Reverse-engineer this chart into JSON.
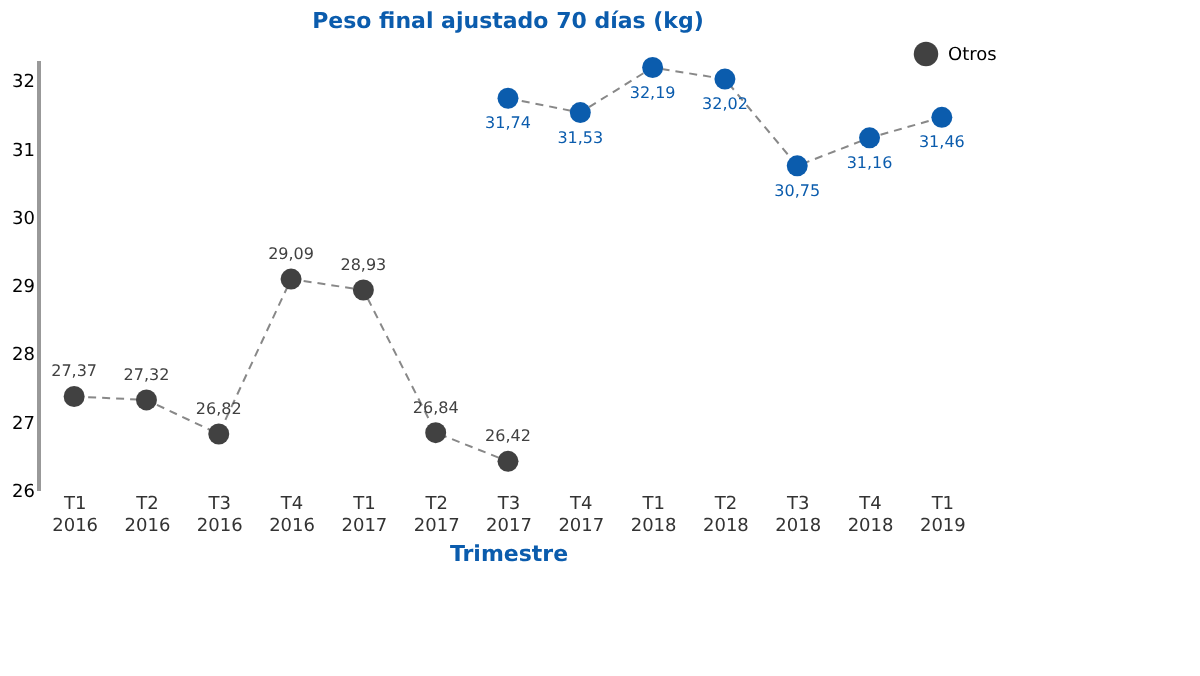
{
  "chart_data": {
    "type": "line",
    "title": "Peso final ajustado 70 días (kg)",
    "xlabel": "Trimestre",
    "categories": [
      "T1 2016",
      "T2 2016",
      "T3 2016",
      "T4 2016",
      "T1 2017",
      "T2 2017",
      "T3 2017",
      "T4 2017",
      "T1 2018",
      "T2 2018",
      "T3 2018",
      "T4 2018",
      "T1 2019"
    ],
    "series": [
      {
        "color": "#0b5cad",
        "values": [
          null,
          null,
          null,
          null,
          null,
          null,
          31.74,
          31.53,
          32.19,
          32.02,
          30.75,
          31.16,
          31.46
        ],
        "value_labels": [
          null,
          null,
          null,
          null,
          null,
          null,
          "31,74",
          "31,53",
          "32,19",
          "32,02",
          "30,75",
          "31,16",
          "31,46"
        ]
      },
      {
        "name": "Otros",
        "color": "#414141",
        "values": [
          27.37,
          27.32,
          26.82,
          29.09,
          28.93,
          26.84,
          26.42,
          null,
          null,
          null,
          null,
          null,
          null
        ],
        "value_labels": [
          "27,37",
          "27,32",
          "26,82",
          "29,09",
          "28,93",
          "26,84",
          "26,42",
          null,
          null,
          null,
          null,
          null,
          null
        ]
      }
    ],
    "ylim": [
      26,
      32.3
    ],
    "yticks": [
      26,
      27,
      28,
      29,
      30,
      31,
      32
    ],
    "grid": false,
    "legend": "top right",
    "marker": "circle",
    "line_style": "dashed"
  }
}
